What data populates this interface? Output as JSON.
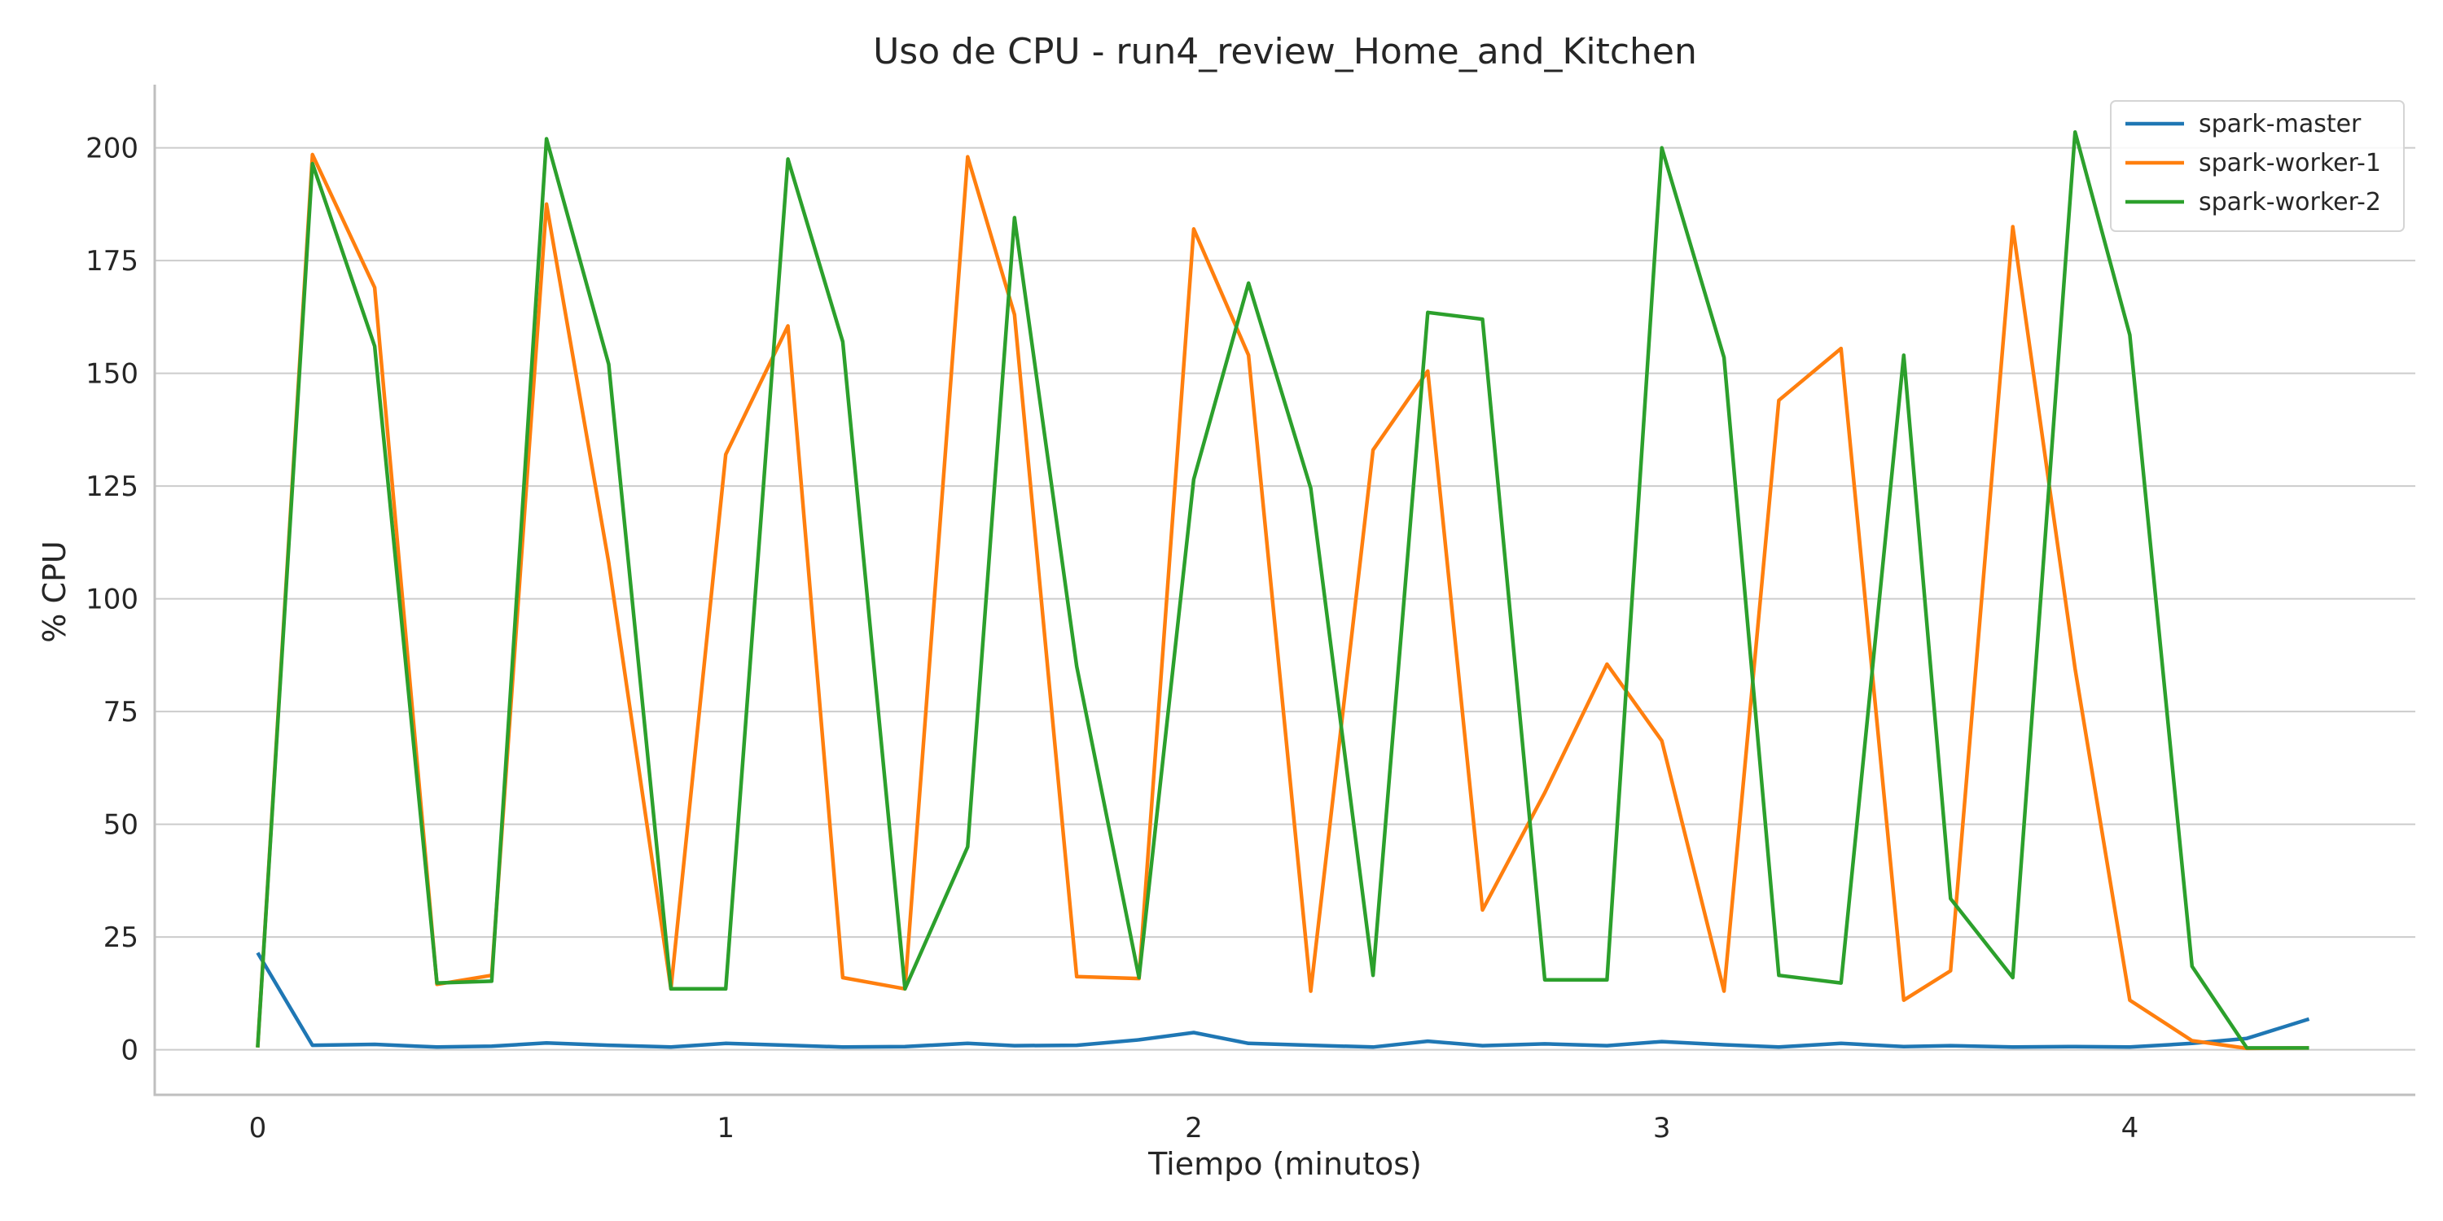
{
  "chart_data": {
    "type": "line",
    "title": "Uso de CPU - run4_review_Home_and_Kitchen",
    "xlabel": "Tiempo (minutos)",
    "ylabel": "% CPU",
    "xlim": [
      -0.22,
      4.61
    ],
    "ylim": [
      -10,
      214
    ],
    "xticks": [
      0,
      1,
      2,
      3,
      4
    ],
    "yticks": [
      0,
      25,
      50,
      75,
      100,
      125,
      150,
      175,
      200
    ],
    "grid": "horizontal",
    "legend_position": "top-right",
    "x": [
      0,
      0.117,
      0.25,
      0.383,
      0.5,
      0.617,
      0.75,
      0.883,
      1.0,
      1.133,
      1.25,
      1.383,
      1.517,
      1.617,
      1.75,
      1.883,
      2.0,
      2.117,
      2.25,
      2.383,
      2.5,
      2.617,
      2.75,
      2.883,
      3.0,
      3.133,
      3.25,
      3.383,
      3.517,
      3.617,
      3.75,
      3.883,
      4.0,
      4.133,
      4.25,
      4.383
    ],
    "series": [
      {
        "name": "spark-master",
        "color": "#1f77b4",
        "values": [
          21.5,
          1.0,
          1.2,
          0.6,
          0.8,
          1.5,
          1.0,
          0.6,
          1.4,
          1.0,
          0.6,
          0.7,
          1.4,
          0.9,
          1.0,
          2.2,
          3.8,
          1.4,
          1.0,
          0.6,
          1.9,
          0.9,
          1.3,
          0.9,
          1.8,
          1.1,
          0.6,
          1.4,
          0.7,
          0.9,
          0.6,
          0.7,
          0.6,
          1.4,
          2.5,
          6.8
        ]
      },
      {
        "name": "spark-worker-1",
        "color": "#ff7f0e",
        "values": [
          0.5,
          198.5,
          169.0,
          14.5,
          16.5,
          187.5,
          108.0,
          13.5,
          132.0,
          160.5,
          16.0,
          13.5,
          198.0,
          163.0,
          16.2,
          15.8,
          182.0,
          154.0,
          13.0,
          133.0,
          150.5,
          31.0,
          57.0,
          85.5,
          68.5,
          13.0,
          144.0,
          155.5,
          11.0,
          17.5,
          182.5,
          84.5,
          11.0,
          2.0,
          0.3,
          0.4
        ]
      },
      {
        "name": "spark-worker-2",
        "color": "#2ca02c",
        "values": [
          0.5,
          196.5,
          156.0,
          14.8,
          15.2,
          202.0,
          152.0,
          13.5,
          13.5,
          197.5,
          157.0,
          13.5,
          45.0,
          184.5,
          85.0,
          16.0,
          126.5,
          170.0,
          124.5,
          16.5,
          163.5,
          162.0,
          15.5,
          15.5,
          200.0,
          153.5,
          16.5,
          14.8,
          154.0,
          33.5,
          16.0,
          203.5,
          158.5,
          18.5,
          0.4,
          0.4
        ]
      }
    ]
  }
}
